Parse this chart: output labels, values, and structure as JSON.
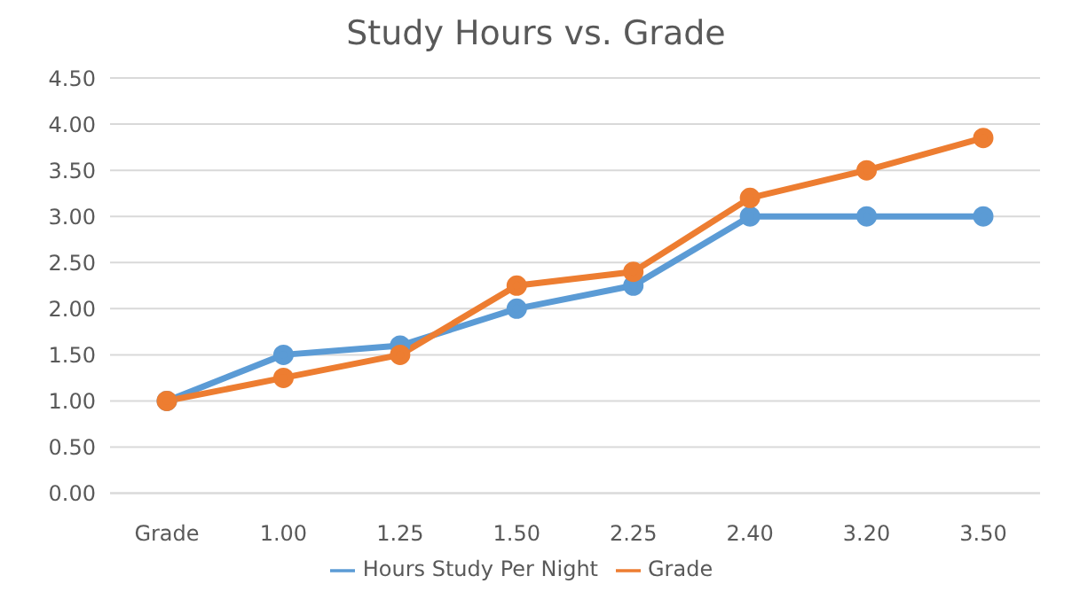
{
  "chart_data": {
    "type": "line",
    "title": "Study Hours vs. Grade",
    "categories": [
      "Grade",
      "1.00",
      "1.25",
      "1.50",
      "2.25",
      "2.40",
      "3.20",
      "3.50"
    ],
    "series": [
      {
        "name": "Hours Study Per Night",
        "color": "#5b9bd5",
        "values": [
          1.0,
          1.5,
          1.6,
          2.0,
          2.25,
          3.0,
          3.0,
          3.0
        ]
      },
      {
        "name": "Grade",
        "color": "#ed7d31",
        "values": [
          1.0,
          1.25,
          1.5,
          2.25,
          2.4,
          3.2,
          3.5,
          3.85
        ]
      }
    ],
    "ylim": [
      0,
      4.5
    ],
    "yticks": [
      {
        "value": 0,
        "label": "0.00"
      },
      {
        "value": 0.5,
        "label": "0.50"
      },
      {
        "value": 1,
        "label": "1.00"
      },
      {
        "value": 1.5,
        "label": "1.50"
      },
      {
        "value": 2,
        "label": "2.00"
      },
      {
        "value": 2.5,
        "label": "2.50"
      },
      {
        "value": 3,
        "label": "3.00"
      },
      {
        "value": 3.5,
        "label": "3.50"
      },
      {
        "value": 4,
        "label": "4.00"
      },
      {
        "value": 4.5,
        "label": "4.50"
      }
    ],
    "grid": "y",
    "legend": "bottom",
    "marker": "circle",
    "line_style": "solid"
  }
}
